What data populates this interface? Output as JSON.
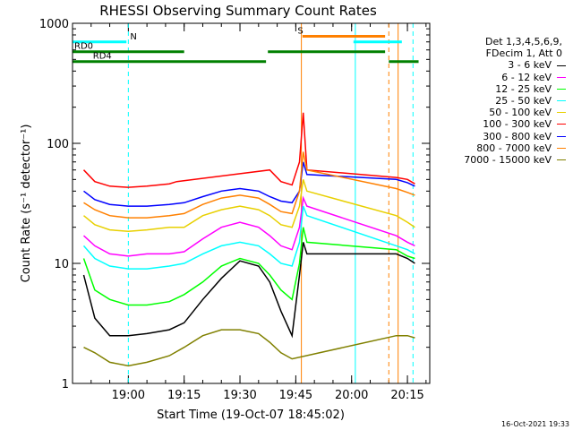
{
  "chart_data": {
    "type": "line",
    "title": "RHESSI Observing Summary Count Rates",
    "xlabel": "Start Time (19-Oct-07 18:45:02)",
    "ylabel": "Count Rate (s⁻¹ detector⁻¹)",
    "yscale": "log",
    "ylim": [
      1,
      1000
    ],
    "xlim_minutes": [
      0,
      96
    ],
    "x_ticks": [
      {
        "label": "19:00",
        "min": 15
      },
      {
        "label": "19:15",
        "min": 30
      },
      {
        "label": "19:30",
        "min": 45
      },
      {
        "label": "19:45",
        "min": 60
      },
      {
        "label": "20:00",
        "min": 75
      },
      {
        "label": "20:15",
        "min": 90
      }
    ],
    "y_ticks": [
      {
        "label": "1",
        "value": 1
      },
      {
        "label": "10",
        "value": 10
      },
      {
        "label": "100",
        "value": 100
      },
      {
        "label": "1000",
        "value": 1000
      }
    ],
    "legend_header": [
      "Det 1,3,4,5,6,9,",
      "FDecim 1, Att 0"
    ],
    "series": [
      {
        "name": "3 - 6 keV",
        "color": "#000000",
        "values": [
          [
            3,
            8
          ],
          [
            6,
            3.5
          ],
          [
            10,
            2.5
          ],
          [
            15,
            2.5
          ],
          [
            20,
            2.6
          ],
          [
            26,
            2.8
          ],
          [
            30,
            3.2
          ],
          [
            35,
            5
          ],
          [
            40,
            7.5
          ],
          [
            45,
            10.5
          ],
          [
            50,
            9.5
          ],
          [
            53,
            7
          ],
          [
            56,
            4
          ],
          [
            59,
            2.5
          ],
          [
            61,
            8
          ],
          [
            62,
            15
          ],
          [
            63,
            12
          ],
          [
            87,
            12
          ],
          [
            90,
            11
          ],
          [
            92,
            10
          ]
        ]
      },
      {
        "name": "6 - 12 keV",
        "color": "#ff00ff",
        "values": [
          [
            3,
            17
          ],
          [
            6,
            14
          ],
          [
            10,
            12
          ],
          [
            15,
            11.5
          ],
          [
            20,
            12
          ],
          [
            26,
            12
          ],
          [
            30,
            12.5
          ],
          [
            35,
            16
          ],
          [
            40,
            20
          ],
          [
            45,
            22
          ],
          [
            50,
            20
          ],
          [
            53,
            17
          ],
          [
            56,
            14
          ],
          [
            59,
            13
          ],
          [
            61,
            20
          ],
          [
            62,
            35
          ],
          [
            63,
            30
          ],
          [
            87,
            17
          ],
          [
            90,
            15
          ],
          [
            92,
            14
          ]
        ]
      },
      {
        "name": "12 - 25 keV",
        "color": "#00ff00",
        "values": [
          [
            3,
            11
          ],
          [
            6,
            6
          ],
          [
            10,
            5
          ],
          [
            15,
            4.5
          ],
          [
            20,
            4.5
          ],
          [
            26,
            4.8
          ],
          [
            30,
            5.5
          ],
          [
            35,
            7
          ],
          [
            40,
            9.5
          ],
          [
            45,
            11
          ],
          [
            50,
            10
          ],
          [
            53,
            8
          ],
          [
            56,
            6
          ],
          [
            59,
            5
          ],
          [
            61,
            10
          ],
          [
            62,
            20
          ],
          [
            63,
            15
          ],
          [
            87,
            13
          ],
          [
            90,
            11.5
          ],
          [
            92,
            11
          ]
        ]
      },
      {
        "name": "25 - 50 keV",
        "color": "#00ffff",
        "values": [
          [
            3,
            14
          ],
          [
            6,
            11
          ],
          [
            10,
            9.5
          ],
          [
            15,
            9
          ],
          [
            20,
            9
          ],
          [
            26,
            9.5
          ],
          [
            30,
            10
          ],
          [
            35,
            12
          ],
          [
            40,
            14
          ],
          [
            45,
            15
          ],
          [
            50,
            14
          ],
          [
            53,
            12
          ],
          [
            56,
            10
          ],
          [
            59,
            9.5
          ],
          [
            61,
            15
          ],
          [
            62,
            30
          ],
          [
            63,
            25
          ],
          [
            87,
            14
          ],
          [
            90,
            13
          ],
          [
            92,
            12
          ]
        ]
      },
      {
        "name": "50 - 100 keV",
        "color": "#e8d000",
        "values": [
          [
            3,
            25
          ],
          [
            6,
            21
          ],
          [
            10,
            19
          ],
          [
            15,
            18.5
          ],
          [
            20,
            19
          ],
          [
            26,
            20
          ],
          [
            30,
            20
          ],
          [
            35,
            25
          ],
          [
            40,
            28
          ],
          [
            45,
            30
          ],
          [
            50,
            28
          ],
          [
            53,
            25
          ],
          [
            56,
            21
          ],
          [
            59,
            20
          ],
          [
            61,
            30
          ],
          [
            62,
            50
          ],
          [
            63,
            40
          ],
          [
            87,
            25
          ],
          [
            90,
            22
          ],
          [
            92,
            20
          ]
        ]
      },
      {
        "name": "100 - 300 keV",
        "color": "#ff0000",
        "values": [
          [
            3,
            60
          ],
          [
            6,
            48
          ],
          [
            10,
            44
          ],
          [
            15,
            43
          ],
          [
            20,
            44
          ],
          [
            26,
            46
          ],
          [
            28,
            48
          ],
          [
            53,
            60
          ],
          [
            56,
            48
          ],
          [
            59,
            45
          ],
          [
            61,
            70
          ],
          [
            62,
            180
          ],
          [
            63,
            60
          ],
          [
            87,
            52
          ],
          [
            90,
            50
          ],
          [
            92,
            46
          ]
        ]
      },
      {
        "name": "300 - 800 keV",
        "color": "#0000ff",
        "values": [
          [
            3,
            40
          ],
          [
            6,
            34
          ],
          [
            10,
            31
          ],
          [
            15,
            30
          ],
          [
            20,
            30
          ],
          [
            26,
            31
          ],
          [
            30,
            32
          ],
          [
            35,
            36
          ],
          [
            40,
            40
          ],
          [
            45,
            42
          ],
          [
            50,
            40
          ],
          [
            53,
            36
          ],
          [
            56,
            33
          ],
          [
            59,
            32
          ],
          [
            61,
            40
          ],
          [
            62,
            70
          ],
          [
            63,
            55
          ],
          [
            87,
            50
          ],
          [
            90,
            47
          ],
          [
            92,
            44
          ]
        ]
      },
      {
        "name": "800 - 7000 keV",
        "color": "#ff8000",
        "values": [
          [
            3,
            32
          ],
          [
            6,
            28
          ],
          [
            10,
            25
          ],
          [
            15,
            24
          ],
          [
            20,
            24
          ],
          [
            26,
            25
          ],
          [
            30,
            26
          ],
          [
            35,
            31
          ],
          [
            40,
            35
          ],
          [
            45,
            37
          ],
          [
            50,
            35
          ],
          [
            53,
            31
          ],
          [
            56,
            27
          ],
          [
            59,
            26
          ],
          [
            61,
            40
          ],
          [
            62,
            85
          ],
          [
            63,
            60
          ],
          [
            87,
            42
          ],
          [
            90,
            39
          ],
          [
            92,
            37
          ]
        ]
      },
      {
        "name": "7000 - 15000 keV",
        "color": "#808000",
        "values": [
          [
            3,
            2
          ],
          [
            6,
            1.8
          ],
          [
            10,
            1.5
          ],
          [
            15,
            1.4
          ],
          [
            20,
            1.5
          ],
          [
            26,
            1.7
          ],
          [
            30,
            2
          ],
          [
            35,
            2.5
          ],
          [
            40,
            2.8
          ],
          [
            45,
            2.8
          ],
          [
            50,
            2.6
          ],
          [
            53,
            2.2
          ],
          [
            56,
            1.8
          ],
          [
            59,
            1.6
          ],
          [
            87,
            2.5
          ],
          [
            90,
            2.5
          ],
          [
            92,
            2.4
          ]
        ]
      }
    ],
    "flag_lines": [
      {
        "label": "N",
        "color": "#00ffff",
        "level": 700,
        "start": 0,
        "end": 14.5,
        "label_at": 15
      },
      {
        "label": "S",
        "color": "#ff8000",
        "level": 780,
        "start": 61.8,
        "end": 84,
        "label_at": 60
      },
      {
        "label": "",
        "color": "#00ffff",
        "level": 700,
        "start": 75.5,
        "end": 88.5,
        "label_at": null
      },
      {
        "label": "RD0",
        "color": "#008000",
        "level": 580,
        "start": 0,
        "end": 30,
        "label_at": 0
      },
      {
        "label": "RD4",
        "color": "#008000",
        "level": 480,
        "start": 0,
        "end": 52,
        "label_at": 5
      },
      {
        "label": "",
        "color": "#008000",
        "level": 580,
        "start": 52.5,
        "end": 84,
        "label_at": null
      },
      {
        "label": "",
        "color": "#008000",
        "level": 480,
        "start": 85,
        "end": 93,
        "label_at": null
      }
    ],
    "vertical_markers": [
      {
        "color": "#00ffff",
        "min": 15,
        "style": "dash"
      },
      {
        "color": "#ff8000",
        "min": 61.5,
        "style": "solid"
      },
      {
        "color": "#00ffff",
        "min": 76,
        "style": "solid"
      },
      {
        "color": "#ff8000",
        "min": 85,
        "style": "dash"
      },
      {
        "color": "#ff8000",
        "min": 87.5,
        "style": "solid"
      },
      {
        "color": "#00ffff",
        "min": 91.5,
        "style": "dash"
      }
    ],
    "timestamp": "16-Oct-2021 19:33"
  }
}
